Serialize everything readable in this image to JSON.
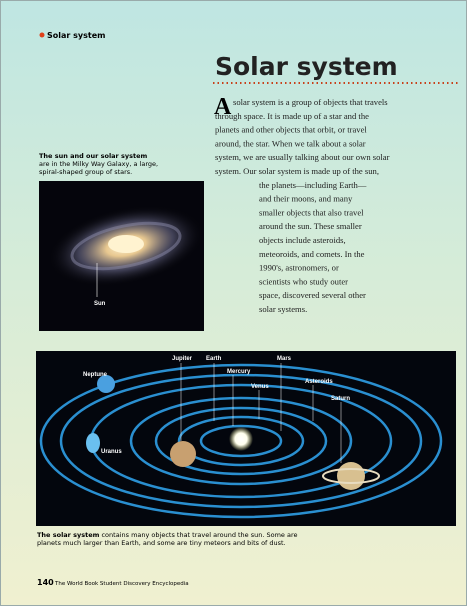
{
  "section_tag": "Solar system",
  "title": "Solar system",
  "body": {
    "drop_cap": "A",
    "lines": [
      "solar system is a group of objects that travels",
      "through space. It is made up of a star and the",
      "planets and other objects that orbit, or travel",
      "around, the star. When we talk about a solar",
      "system, we are usually talking about our own solar",
      "system. Our solar system is made up of the sun,",
      "the planets—including Earth—",
      "and their moons, and many",
      "smaller objects that also travel",
      "around the sun. These smaller",
      "objects include asteroids,",
      "meteoroids, and comets. In the",
      "1990's, astronomers, or",
      "scientists who study outer",
      "space, discovered several other",
      "solar systems."
    ]
  },
  "galaxy_caption": {
    "lead": "The sun and our solar system",
    "lines": [
      "are in the Milky Way Galaxy, a large,",
      "spiral-shaped group of stars."
    ]
  },
  "galaxy_image": {
    "labels": [
      "Sun"
    ]
  },
  "solar_image": {
    "labels": [
      "Neptune",
      "Jupiter",
      "Earth",
      "Mercury",
      "Venus",
      "Mars",
      "Asteroids",
      "Saturn",
      "Uranus"
    ]
  },
  "solar_caption": {
    "lead": "The solar system",
    "lines": [
      " contains many objects that travel around the sun. Some are",
      "planets much larger than Earth, and some are tiny meteors and bits of dust."
    ]
  },
  "footer": {
    "page_number": "140",
    "book": "The World Book Student Discovery Encyclopedia"
  }
}
